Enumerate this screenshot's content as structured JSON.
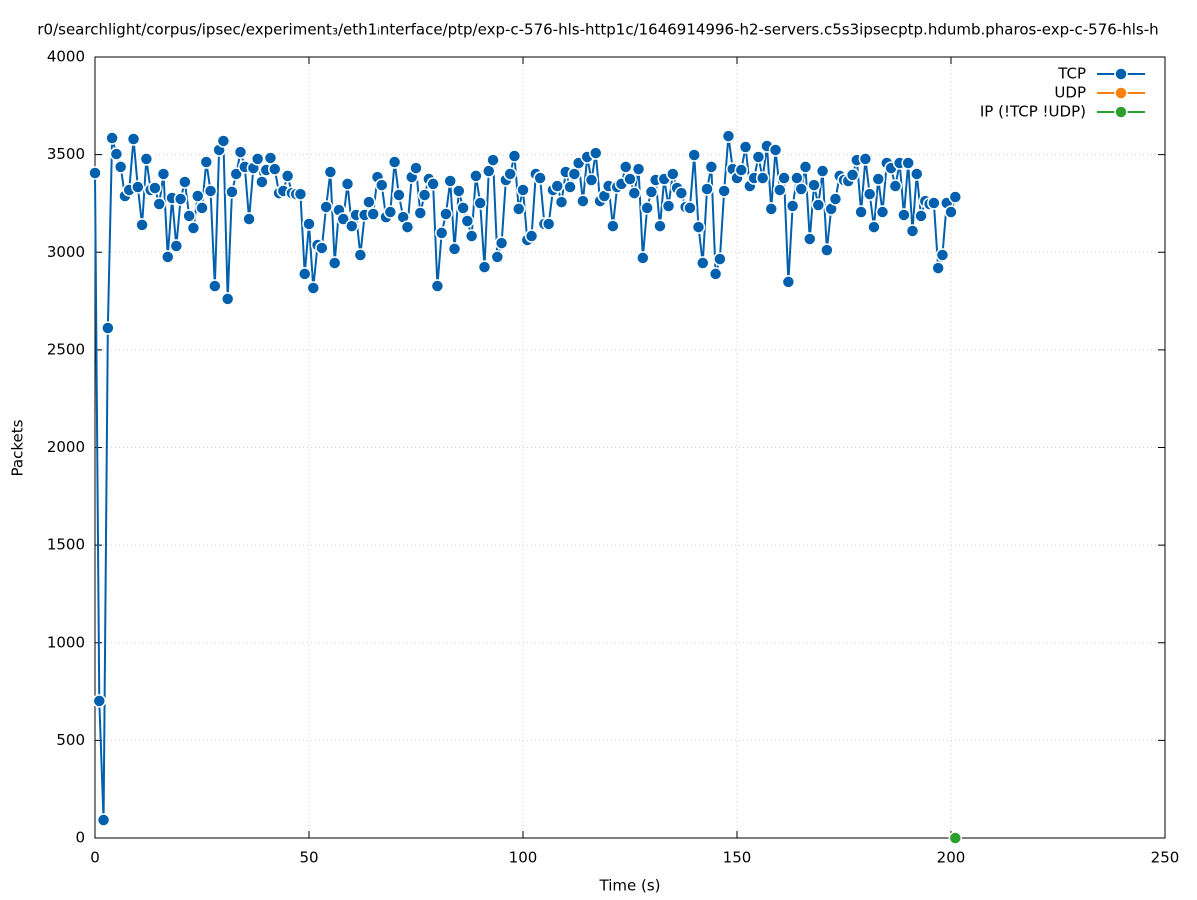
{
  "chart_data": {
    "type": "line",
    "title": "r0/searchlight/corpus/ipsec/experiment₃/eth1ᵢnterface/ptp/exp-c-576-hls-http1c/1646914996-h2-servers.c5s3ipsecptp.hdumb.pharos-exp-c-576-hls-h",
    "x_label": "Time (s)",
    "y_label": "Packets",
    "xlim": [
      0,
      250
    ],
    "xticks": [
      0,
      50,
      100,
      150,
      200,
      250
    ],
    "ylim": [
      0,
      4000
    ],
    "yticks": [
      0,
      500,
      1000,
      1500,
      2000,
      2500,
      3000,
      3500,
      4000
    ],
    "grid": true,
    "legend": "top-right",
    "series": [
      {
        "name": "TCP",
        "color": "#0060ad",
        "x": [
          0,
          1,
          2,
          3,
          4,
          5,
          6,
          7,
          8,
          9,
          10,
          11,
          12,
          13,
          14,
          15,
          16,
          17,
          18,
          19,
          20,
          21,
          22,
          23,
          24,
          25,
          26,
          27,
          28,
          29,
          30,
          31,
          32,
          33,
          34,
          35,
          36,
          37,
          38,
          39,
          40,
          41,
          42,
          43,
          44,
          45,
          46,
          47,
          48,
          49,
          50,
          51,
          52,
          53,
          54,
          55,
          56,
          57,
          58,
          59,
          60,
          61,
          62,
          63,
          64,
          65,
          66,
          67,
          68,
          69,
          70,
          71,
          72,
          73,
          74,
          75,
          76,
          77,
          78,
          79,
          80,
          81,
          82,
          83,
          84,
          85,
          86,
          87,
          88,
          89,
          90,
          91,
          92,
          93,
          94,
          95,
          96,
          97,
          98,
          99,
          100,
          101,
          102,
          103,
          104,
          105,
          106,
          107,
          108,
          109,
          110,
          111,
          112,
          113,
          114,
          115,
          116,
          117,
          118,
          119,
          120,
          121,
          122,
          123,
          124,
          125,
          126,
          127,
          128,
          129,
          130,
          131,
          132,
          133,
          134,
          135,
          136,
          137,
          138,
          139,
          140,
          141,
          142,
          143,
          144,
          145,
          146,
          147,
          148,
          149,
          150,
          151,
          152,
          153,
          154,
          155,
          156,
          157,
          158,
          159,
          160,
          161,
          162,
          163,
          164,
          165,
          166,
          167,
          168,
          169,
          170,
          171,
          172,
          173,
          174,
          175,
          176,
          177,
          178,
          179,
          180,
          181,
          182,
          183,
          184,
          185,
          186,
          187,
          188,
          189,
          190,
          191,
          192,
          193,
          194,
          195,
          196,
          197,
          198,
          199,
          200,
          201
        ],
        "values": [
          3406,
          702,
          92,
          2612,
          3585,
          3503,
          3437,
          3288,
          3319,
          3580,
          3334,
          3140,
          3478,
          3319,
          3329,
          3247,
          3401,
          2976,
          3278,
          3032,
          3273,
          3360,
          3186,
          3124,
          3288,
          3227,
          3462,
          3314,
          2827,
          3524,
          3570,
          2761,
          3309,
          3401,
          3513,
          3437,
          3170,
          3431,
          3478,
          3360,
          3421,
          3483,
          3426,
          3303,
          3314,
          3391,
          3303,
          3298,
          3298,
          2889,
          3145,
          2817,
          3037,
          3022,
          3232,
          3411,
          2945,
          3216,
          3170,
          3350,
          3134,
          3191,
          2986,
          3191,
          3257,
          3196,
          3385,
          3344,
          3180,
          3206,
          3462,
          3293,
          3180,
          3129,
          3385,
          3431,
          3201,
          3293,
          3375,
          3350,
          2827,
          3099,
          3196,
          3365,
          3017,
          3314,
          3227,
          3160,
          3083,
          3391,
          3252,
          2924,
          3416,
          3472,
          2976,
          3047,
          3370,
          3401,
          3493,
          3222,
          3319,
          3063,
          3083,
          3401,
          3380,
          3145,
          3145,
          3319,
          3339,
          3257,
          3411,
          3334,
          3401,
          3457,
          3262,
          3488,
          3370,
          3508,
          3262,
          3288,
          3339,
          3134,
          3334,
          3350,
          3437,
          3375,
          3303,
          3426,
          2971,
          3227,
          3309,
          3370,
          3134,
          3375,
          3237,
          3401,
          3329,
          3303,
          3232,
          3227,
          3498,
          3129,
          2945,
          3324,
          3437,
          2889,
          2965,
          3314,
          3595,
          3426,
          3380,
          3421,
          3539,
          3339,
          3380,
          3488,
          3380,
          3544,
          3222,
          3524,
          3319,
          3380,
          2848,
          3237,
          3380,
          3324,
          3437,
          3068,
          3344,
          3242,
          3416,
          3011,
          3222,
          3273,
          3391,
          3370,
          3365,
          3396,
          3472,
          3206,
          3478,
          3298,
          3129,
          3375,
          3206,
          3457,
          3431,
          3339,
          3457,
          3191,
          3457,
          3109,
          3401,
          3186,
          3262,
          3247,
          3252,
          2919,
          2986,
          3252,
          3206,
          3283
        ]
      },
      {
        "name": "UDP",
        "color": "#ff7f0e",
        "x": [],
        "values": []
      },
      {
        "name": "IP (!TCP  !UDP)",
        "color": "#2ca02c",
        "x": [
          201
        ],
        "values": [
          0
        ]
      }
    ]
  }
}
